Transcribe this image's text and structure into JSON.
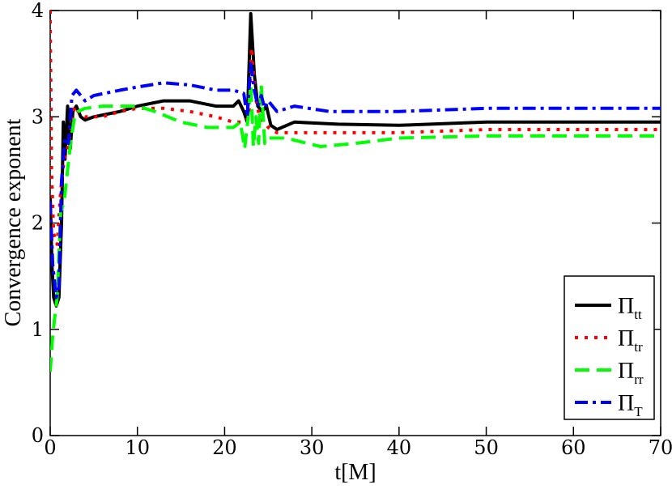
{
  "chart_data": {
    "type": "line",
    "title": "",
    "xlabel": "t[M]",
    "ylabel": "Convergence exponent",
    "xlim": [
      0,
      70
    ],
    "ylim": [
      0,
      4
    ],
    "x_ticks": [
      0,
      10,
      20,
      30,
      40,
      50,
      60,
      70
    ],
    "y_ticks": [
      0,
      1,
      2,
      3,
      4
    ],
    "x_tick_labels": [
      "0",
      "10",
      "20",
      "30",
      "40",
      "50",
      "60",
      "70"
    ],
    "y_tick_labels": [
      "0",
      "1",
      "2",
      "3",
      "4"
    ],
    "grid": false,
    "legend_position": "bottom-right",
    "series": [
      {
        "name": "Π",
        "subscript": "tt",
        "color": "#000000",
        "dash": "solid",
        "points": [
          [
            0,
            2.25
          ],
          [
            0.2,
            1.6
          ],
          [
            0.4,
            1.3
          ],
          [
            0.7,
            1.22
          ],
          [
            1.0,
            1.3
          ],
          [
            1.3,
            2.0
          ],
          [
            1.5,
            2.95
          ],
          [
            1.7,
            2.6
          ],
          [
            2.0,
            3.1
          ],
          [
            2.3,
            2.7
          ],
          [
            2.6,
            3.05
          ],
          [
            3.0,
            3.1
          ],
          [
            3.5,
            3.0
          ],
          [
            4.0,
            2.97
          ],
          [
            5,
            3.0
          ],
          [
            8,
            3.05
          ],
          [
            10,
            3.1
          ],
          [
            13,
            3.15
          ],
          [
            16,
            3.15
          ],
          [
            19,
            3.1
          ],
          [
            21,
            3.1
          ],
          [
            21.6,
            3.15
          ],
          [
            22.2,
            3.05
          ],
          [
            22.6,
            2.95
          ],
          [
            23.0,
            3.97
          ],
          [
            23.4,
            3.4
          ],
          [
            23.8,
            3.1
          ],
          [
            24.3,
            3.05
          ],
          [
            24.8,
            3.1
          ],
          [
            25.3,
            2.92
          ],
          [
            26,
            2.88
          ],
          [
            28,
            2.95
          ],
          [
            33,
            2.93
          ],
          [
            40,
            2.92
          ],
          [
            50,
            2.95
          ],
          [
            70,
            2.95
          ]
        ]
      },
      {
        "name": "Π",
        "subscript": "tr",
        "color": "#ff0000",
        "dash": "dotted",
        "points": [
          [
            0,
            4.0
          ],
          [
            0.15,
            2.5
          ],
          [
            0.4,
            1.9
          ],
          [
            0.8,
            1.8
          ],
          [
            1.2,
            2.3
          ],
          [
            1.6,
            2.6
          ],
          [
            2.0,
            2.7
          ],
          [
            2.4,
            2.9
          ],
          [
            2.8,
            3.1
          ],
          [
            3.2,
            3.05
          ],
          [
            4,
            3.0
          ],
          [
            6,
            3.0
          ],
          [
            8,
            3.05
          ],
          [
            10,
            3.08
          ],
          [
            13,
            3.08
          ],
          [
            16,
            3.05
          ],
          [
            19,
            3.0
          ],
          [
            21,
            2.95
          ],
          [
            22.3,
            2.95
          ],
          [
            22.8,
            3.0
          ],
          [
            23.1,
            3.65
          ],
          [
            23.5,
            3.2
          ],
          [
            24.0,
            3.0
          ],
          [
            25,
            2.9
          ],
          [
            26,
            2.85
          ],
          [
            30,
            2.85
          ],
          [
            40,
            2.85
          ],
          [
            50,
            2.88
          ],
          [
            70,
            2.88
          ]
        ]
      },
      {
        "name": "Π",
        "subscript": "rr",
        "color": "#00ff00",
        "dash": "dashed",
        "points": [
          [
            0,
            0.6
          ],
          [
            0.25,
            0.9
          ],
          [
            0.5,
            1.1
          ],
          [
            0.8,
            1.3
          ],
          [
            1.2,
            2.1
          ],
          [
            1.6,
            2.2
          ],
          [
            2.0,
            2.5
          ],
          [
            2.4,
            2.8
          ],
          [
            2.8,
            3.0
          ],
          [
            3.2,
            3.05
          ],
          [
            4,
            3.08
          ],
          [
            6,
            3.1
          ],
          [
            10,
            3.1
          ],
          [
            12,
            3.05
          ],
          [
            15,
            2.95
          ],
          [
            18,
            2.9
          ],
          [
            21,
            2.9
          ],
          [
            21.8,
            2.95
          ],
          [
            22.3,
            2.7
          ],
          [
            22.7,
            3.0
          ],
          [
            23.0,
            3.3
          ],
          [
            23.3,
            2.72
          ],
          [
            23.6,
            3.0
          ],
          [
            23.9,
            2.75
          ],
          [
            24.2,
            3.3
          ],
          [
            24.6,
            2.75
          ],
          [
            25,
            2.8
          ],
          [
            27,
            2.8
          ],
          [
            31,
            2.72
          ],
          [
            35,
            2.75
          ],
          [
            40,
            2.8
          ],
          [
            50,
            2.82
          ],
          [
            70,
            2.82
          ]
        ]
      },
      {
        "name": "Π",
        "subscript": "T",
        "color": "#0000ff",
        "dash": "dashdot",
        "points": [
          [
            0,
            2.2
          ],
          [
            0.3,
            1.6
          ],
          [
            0.7,
            1.3
          ],
          [
            1.0,
            1.4
          ],
          [
            1.3,
            2.4
          ],
          [
            1.7,
            2.8
          ],
          [
            2.1,
            2.75
          ],
          [
            2.5,
            3.2
          ],
          [
            3.0,
            3.25
          ],
          [
            3.5,
            3.2
          ],
          [
            4,
            3.15
          ],
          [
            5,
            3.2
          ],
          [
            8,
            3.25
          ],
          [
            10,
            3.28
          ],
          [
            13,
            3.32
          ],
          [
            16,
            3.3
          ],
          [
            19,
            3.25
          ],
          [
            21,
            3.25
          ],
          [
            22.2,
            3.22
          ],
          [
            22.6,
            3.0
          ],
          [
            23.0,
            3.5
          ],
          [
            23.4,
            3.25
          ],
          [
            23.8,
            3.1
          ],
          [
            24.2,
            3.2
          ],
          [
            24.6,
            3.08
          ],
          [
            25.0,
            3.15
          ],
          [
            26,
            3.05
          ],
          [
            28,
            3.1
          ],
          [
            32,
            3.05
          ],
          [
            40,
            3.05
          ],
          [
            50,
            3.08
          ],
          [
            70,
            3.08
          ]
        ]
      }
    ]
  }
}
